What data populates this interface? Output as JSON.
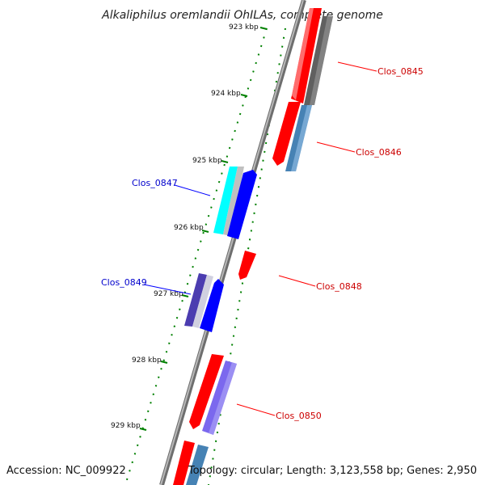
{
  "title": "Alkaliphilus oremlandii OhILAs, complete genome",
  "footer": {
    "accession": "Accession: NC_009922",
    "topology": "Topology: circular; Length: 3,123,558 bp; Genes: 2,950"
  },
  "colors": {
    "forward_gene": "#ff0000",
    "reverse_gene": "#0000ff",
    "backbone": "#808080",
    "tick": "#008000",
    "label_forward": "#cc0000",
    "label_reverse": "#0000cc"
  },
  "kbp_labels": [
    "923 kbp",
    "924 kbp",
    "925 kbp",
    "926 kbp",
    "927 kbp",
    "928 kbp",
    "929 kbp"
  ],
  "gene_labels": [
    "Clos_0845",
    "Clos_0846",
    "Clos_0847",
    "Clos_0848",
    "Clos_0849",
    "Clos_0850"
  ]
}
